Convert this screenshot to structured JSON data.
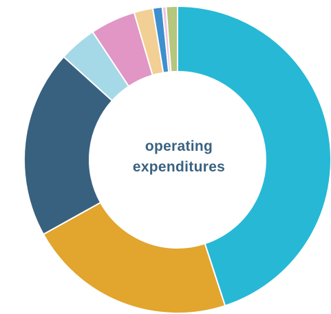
{
  "chart_data": {
    "type": "pie",
    "style": "donut",
    "center_label": {
      "line1": "operating",
      "line2": "expenditures",
      "color": "#3a6281"
    },
    "slices": [
      {
        "value": 45.3,
        "color": "#27b8d6"
      },
      {
        "value": 22.1,
        "color": "#e2a52d"
      },
      {
        "value": 19.9,
        "color": "#38617f"
      },
      {
        "value": 4.0,
        "color": "#a5d9e7"
      },
      {
        "value": 4.8,
        "color": "#e196c5"
      },
      {
        "value": 2.0,
        "color": "#f2cf94"
      },
      {
        "value": 1.0,
        "color": "#3e8fcd"
      },
      {
        "value": 0.4,
        "color": "#f1c3e1"
      },
      {
        "value": 1.2,
        "color": "#b4c77c"
      }
    ],
    "start_angle_deg": 0,
    "direction": "clockwise",
    "legend": "none"
  }
}
